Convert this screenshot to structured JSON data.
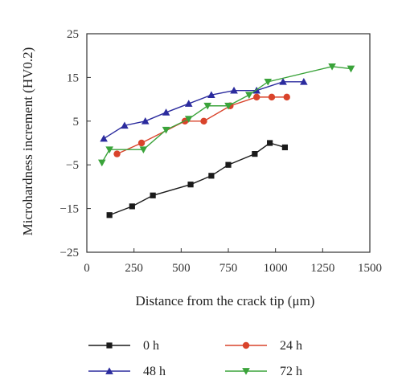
{
  "chart_data": {
    "type": "line",
    "xlabel": "Distance from the crack tip (μm)",
    "ylabel": "Microhardness increment (HV0.2)",
    "xlim": [
      0,
      1500
    ],
    "ylim": [
      -25,
      25
    ],
    "xticks": [
      "0",
      "250",
      "500",
      "750",
      "1000",
      "1250",
      "1500"
    ],
    "yticks": [
      "25",
      "15",
      "5",
      "−5",
      "−15",
      "−25"
    ],
    "grid": false,
    "legend_position": "bottom",
    "series": [
      {
        "name": "0 h",
        "color": "#1a1a1a",
        "marker": "square",
        "x": [
          120,
          240,
          350,
          550,
          660,
          750,
          890,
          970,
          1050
        ],
        "y": [
          -16.5,
          -14.5,
          -12,
          -9.5,
          -7.5,
          -5,
          -2.5,
          0,
          -1
        ]
      },
      {
        "name": "24 h",
        "color": "#d9432b",
        "marker": "circle",
        "x": [
          160,
          290,
          520,
          620,
          760,
          900,
          980,
          1060
        ],
        "y": [
          -2.5,
          0,
          5,
          5,
          8.5,
          10.5,
          10.5,
          10.5
        ]
      },
      {
        "name": "48 h",
        "color": "#2b2b9e",
        "marker": "triangle-up",
        "x": [
          90,
          200,
          310,
          420,
          540,
          660,
          780,
          900,
          1040,
          1150
        ],
        "y": [
          1,
          4,
          5,
          7,
          9,
          11,
          12,
          12,
          14,
          14
        ]
      },
      {
        "name": "72 h",
        "color": "#3aa33a",
        "marker": "triangle-down",
        "x": [
          80,
          120,
          300,
          420,
          540,
          640,
          750,
          860,
          960,
          1300,
          1400
        ],
        "y": [
          -4.5,
          -1.5,
          -1.5,
          3,
          5.5,
          8.5,
          8.5,
          11,
          14,
          17.5,
          17
        ]
      }
    ]
  }
}
